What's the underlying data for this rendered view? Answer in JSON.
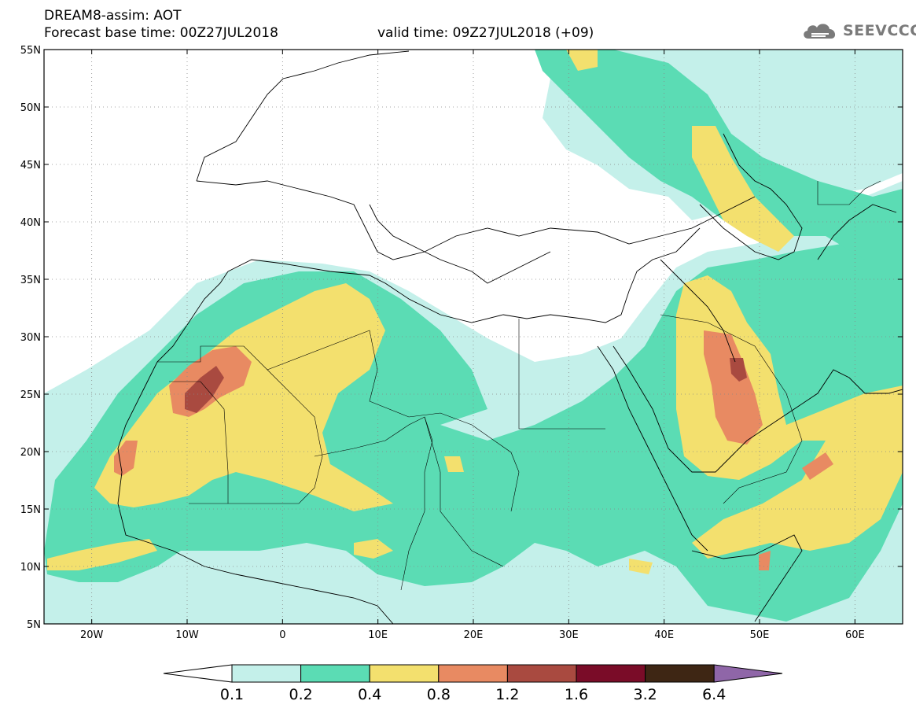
{
  "header": {
    "title": "DREAM8-assim: AOT",
    "base_time": "Forecast base time: 00Z27JUL2018",
    "valid_time": "valid time: 09Z27JUL2018 (+09)"
  },
  "logo": {
    "text": "SEEVCCC",
    "icon": "cloud-icon"
  },
  "map": {
    "lon_range": [
      -25,
      65
    ],
    "lat_range": [
      5,
      55
    ],
    "lat_labels": [
      "55N",
      "50N",
      "45N",
      "40N",
      "35N",
      "30N",
      "25N",
      "20N",
      "15N",
      "10N",
      "5N"
    ],
    "lat_values": [
      55,
      50,
      45,
      40,
      35,
      30,
      25,
      20,
      15,
      10,
      5
    ],
    "lon_labels": [
      "20W",
      "10W",
      "0",
      "10E",
      "20E",
      "30E",
      "40E",
      "50E",
      "60E"
    ],
    "lon_values": [
      -20,
      -10,
      0,
      10,
      20,
      30,
      40,
      50,
      60
    ],
    "grid": "dotted",
    "variable": "aerosol optical thickness"
  },
  "colorbar": {
    "levels": [
      "0.1",
      "0.2",
      "0.4",
      "0.8",
      "1.2",
      "1.6",
      "3.2",
      "6.4"
    ],
    "colors": [
      "#c4f0ea",
      "#5bdcb4",
      "#f3e06e",
      "#e88a62",
      "#a94a40",
      "#7a0c28",
      "#3e2614",
      "#8f66a8"
    ]
  }
}
